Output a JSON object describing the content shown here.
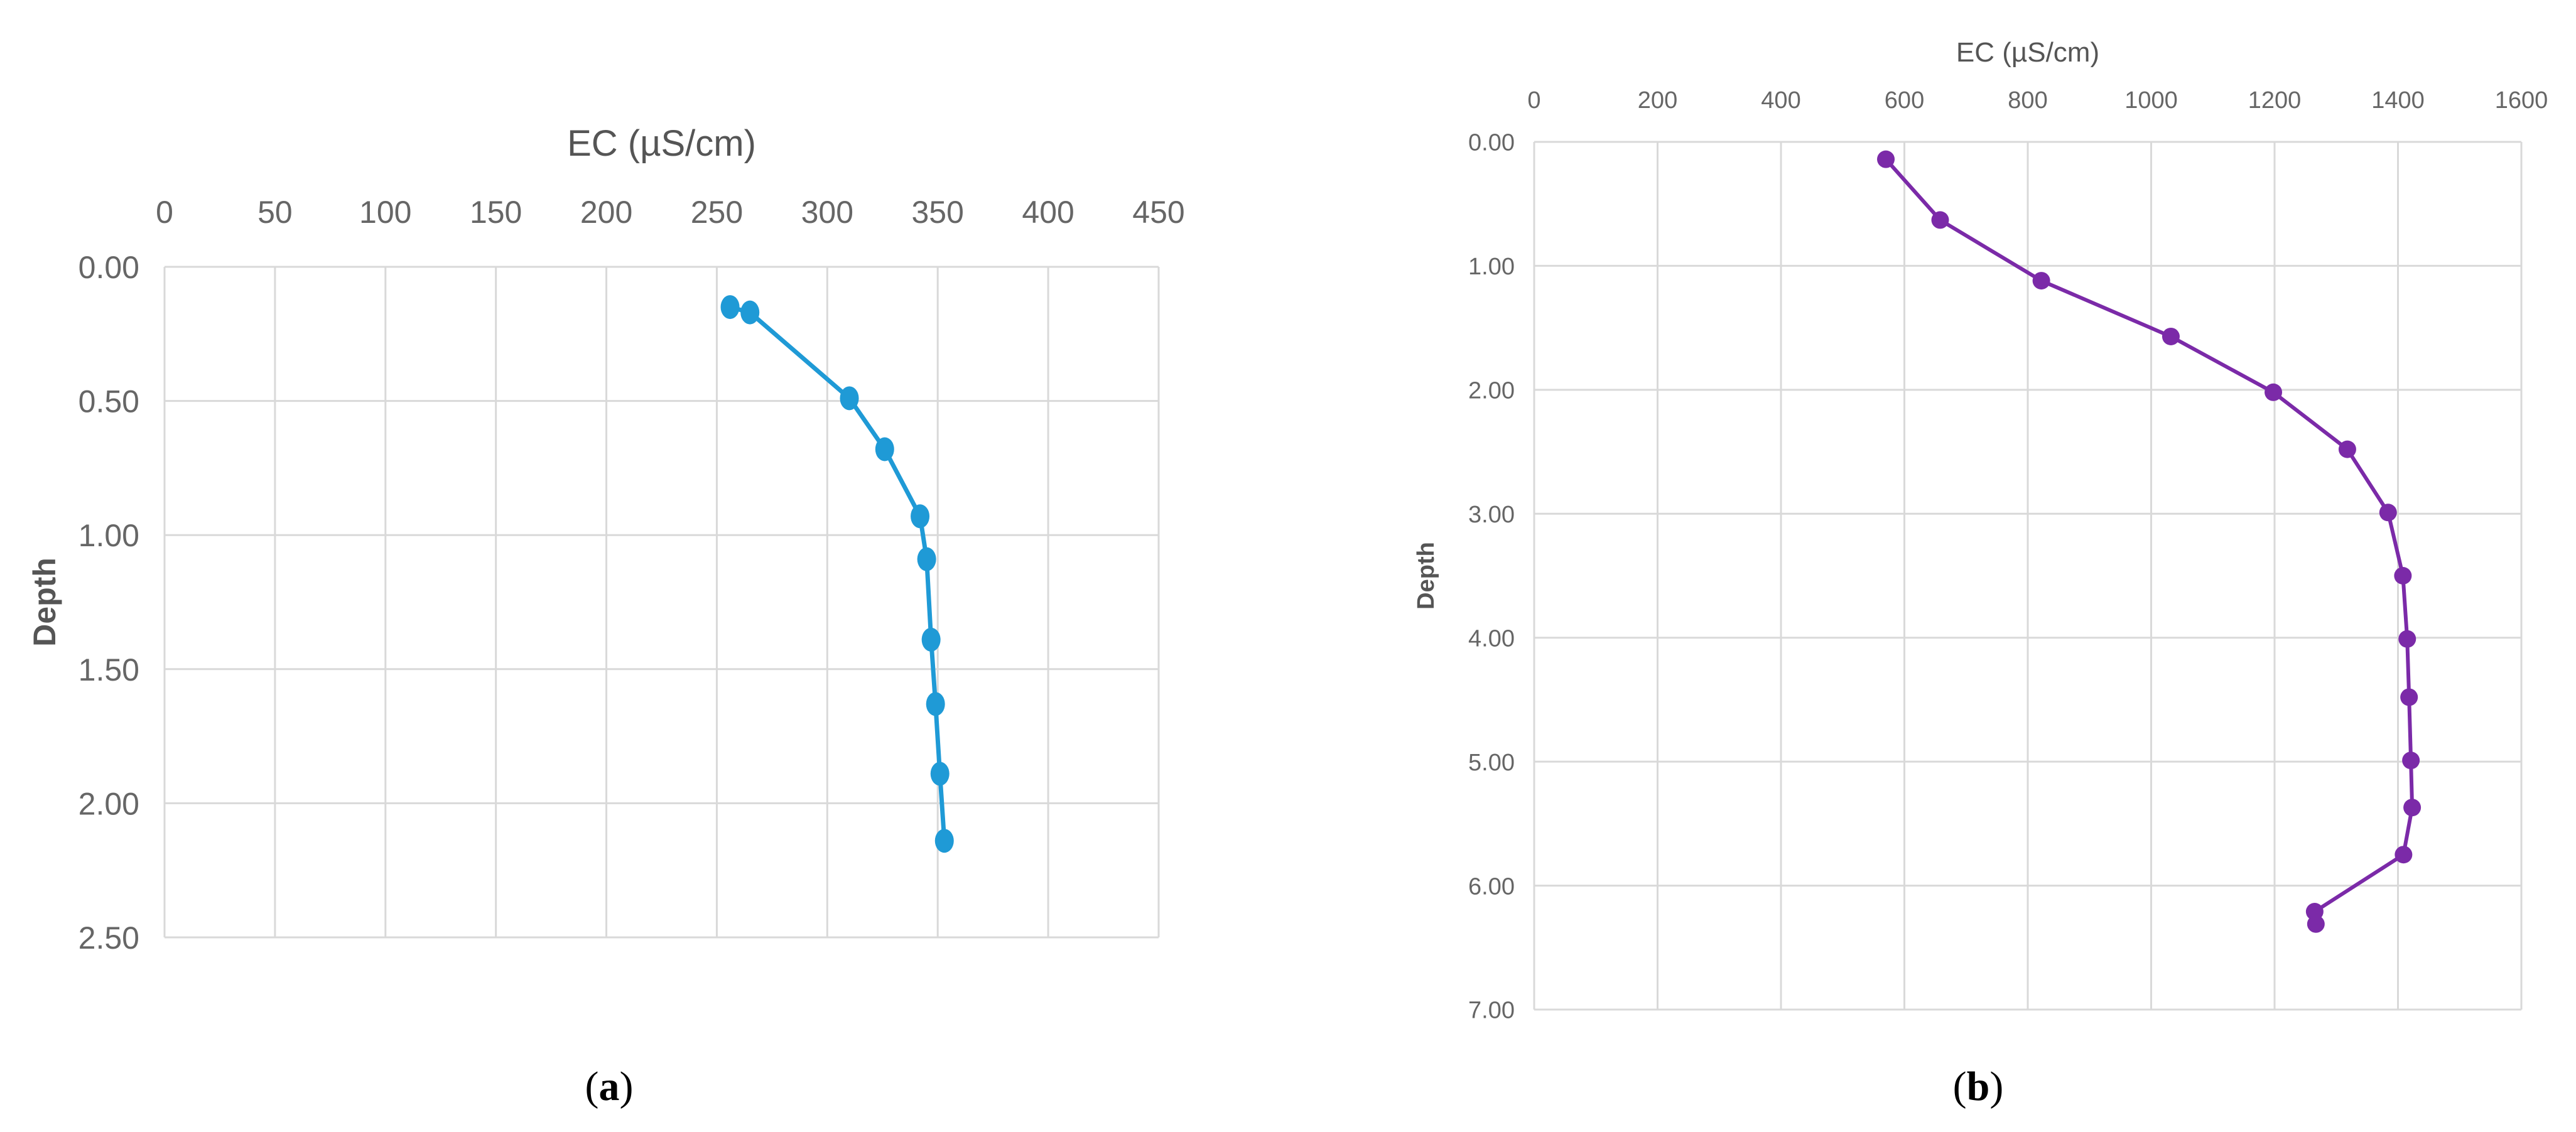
{
  "charts": [
    {
      "panel": "a",
      "caption_prefix": "(",
      "caption_letter": "a",
      "caption_suffix": ")",
      "chart_data": {
        "type": "line",
        "xlabel": "EC (µS/cm)",
        "ylabel": "Depth",
        "xlim": [
          0,
          450
        ],
        "ylim": [
          0,
          2.5
        ],
        "x_ticks": [
          0,
          50,
          100,
          150,
          200,
          250,
          300,
          350,
          400,
          450
        ],
        "y_ticks": [
          "0.00",
          "0.50",
          "1.00",
          "1.50",
          "2.00",
          "2.50"
        ],
        "x_axis_position": "top",
        "y_reversed": true,
        "grid": true,
        "series": [
          {
            "color": "#1f9ad6",
            "points": [
              {
                "x": 256,
                "y": 0.15
              },
              {
                "x": 265,
                "y": 0.17
              },
              {
                "x": 310,
                "y": 0.49
              },
              {
                "x": 326,
                "y": 0.68
              },
              {
                "x": 342,
                "y": 0.93
              },
              {
                "x": 345,
                "y": 1.09
              },
              {
                "x": 347,
                "y": 1.39
              },
              {
                "x": 349,
                "y": 1.63
              },
              {
                "x": 351,
                "y": 1.89
              },
              {
                "x": 353,
                "y": 2.14
              }
            ]
          }
        ]
      }
    },
    {
      "panel": "b",
      "caption_prefix": "(",
      "caption_letter": "b",
      "caption_suffix": ")",
      "chart_data": {
        "type": "line",
        "xlabel": "EC (µS/cm)",
        "ylabel": "Depth",
        "xlim": [
          0,
          1600
        ],
        "ylim": [
          0,
          7
        ],
        "x_ticks": [
          0,
          200,
          400,
          600,
          800,
          1000,
          1200,
          1400,
          1600
        ],
        "y_ticks": [
          "0.00",
          "1.00",
          "2.00",
          "3.00",
          "4.00",
          "5.00",
          "6.00",
          "7.00"
        ],
        "x_axis_position": "top",
        "y_reversed": true,
        "grid": true,
        "series": [
          {
            "color": "#7b2aa8",
            "points": [
              {
                "x": 570,
                "y": 0.14
              },
              {
                "x": 658,
                "y": 0.63
              },
              {
                "x": 822,
                "y": 1.12
              },
              {
                "x": 1032,
                "y": 1.57
              },
              {
                "x": 1198,
                "y": 2.02
              },
              {
                "x": 1318,
                "y": 2.48
              },
              {
                "x": 1384,
                "y": 2.99
              },
              {
                "x": 1408,
                "y": 3.5
              },
              {
                "x": 1415,
                "y": 4.01
              },
              {
                "x": 1418,
                "y": 4.48
              },
              {
                "x": 1421,
                "y": 4.99
              },
              {
                "x": 1423,
                "y": 5.37
              },
              {
                "x": 1409,
                "y": 5.75
              },
              {
                "x": 1265,
                "y": 6.21
              },
              {
                "x": 1267,
                "y": 6.31
              }
            ]
          }
        ]
      }
    }
  ]
}
